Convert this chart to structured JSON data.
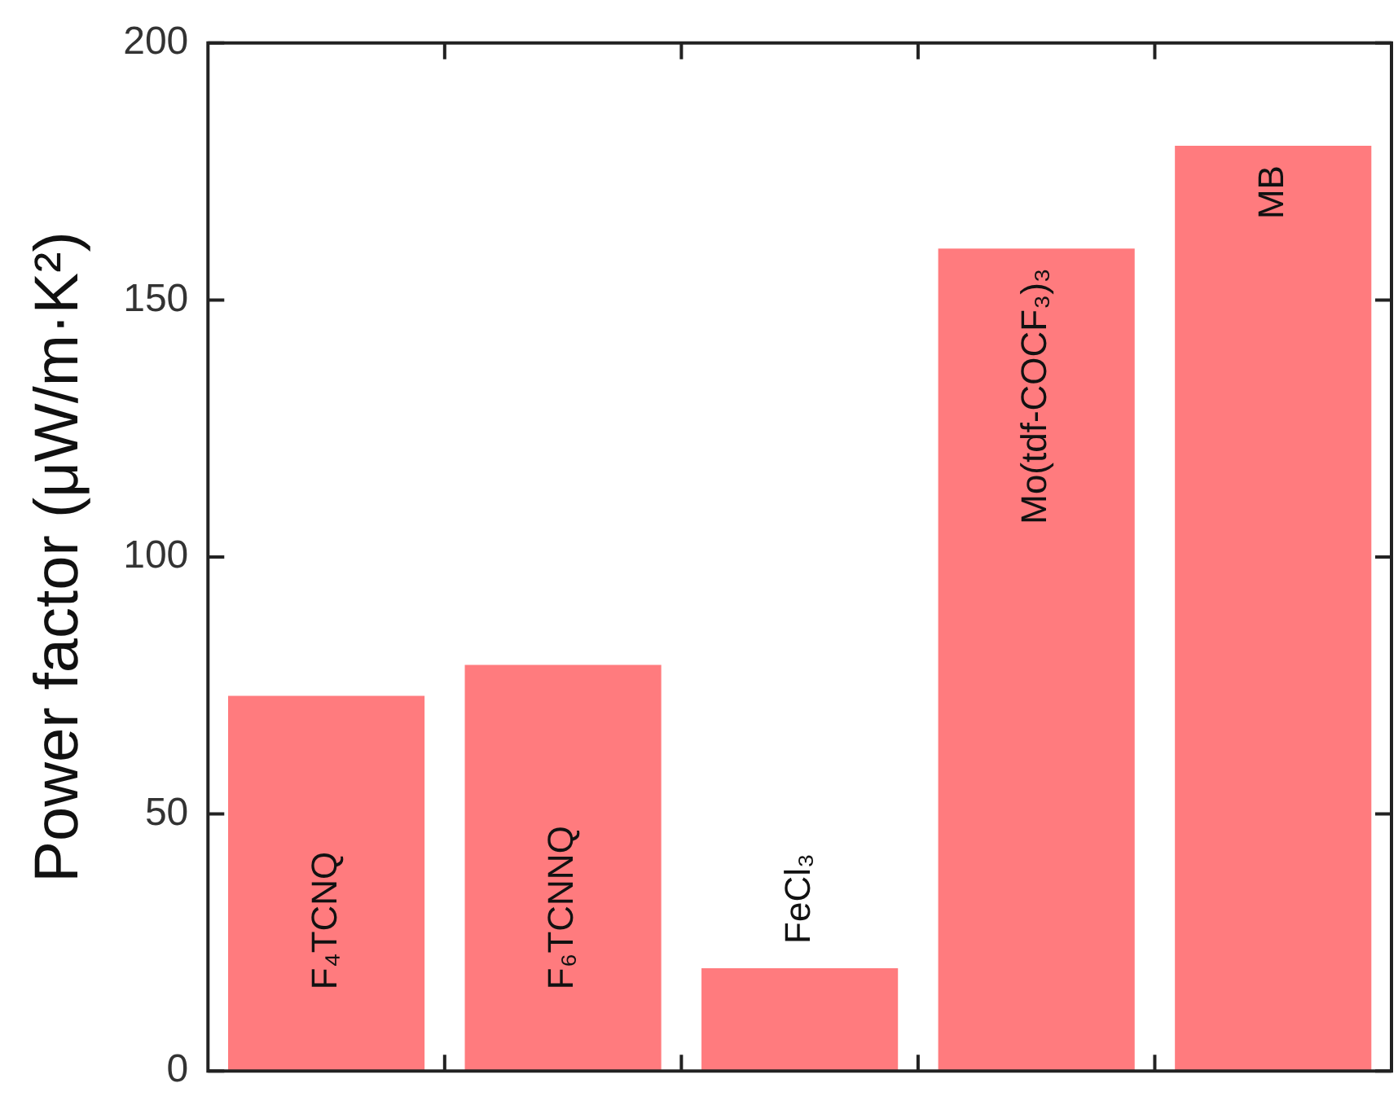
{
  "chart_data": {
    "type": "bar",
    "ylabel": "Power factor (μW/m·K²)",
    "categories": [
      "F₄TCNQ",
      "F₆TCNNQ",
      "FeCl₃",
      "Mo(tdf-COCF₃)₃",
      "MB"
    ],
    "values": [
      73,
      79,
      20,
      160,
      180
    ],
    "color": "#ff7b7e",
    "ylim": [
      0,
      200
    ],
    "yticks": [
      0,
      50,
      100,
      150,
      200
    ],
    "grid": false,
    "legend": false
  }
}
